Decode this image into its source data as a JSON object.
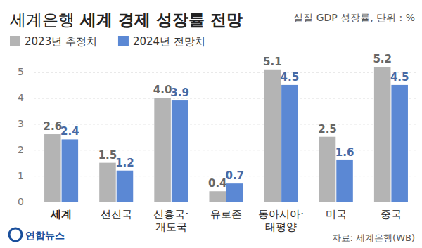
{
  "chart_data": {
    "type": "bar",
    "title": "세계은행 세계 경제 성장률 전망",
    "subtitle": "실질 GDP 성장률, 단위 : %",
    "source": "자료: 세계은행(WB)",
    "logo": "연합뉴스",
    "categories": [
      "세계",
      "선진국",
      "신흥국·개도국",
      "유로존",
      "동아시아·태평양",
      "미국",
      "중국"
    ],
    "series": [
      {
        "name": "2023년 추정치",
        "color": "#b4b4b4",
        "values": [
          2.6,
          1.5,
          4.0,
          0.4,
          5.1,
          2.5,
          5.2
        ],
        "value_labels": [
          "2.6",
          "1.5",
          "4.0",
          "0.4",
          "5.1",
          "2.5",
          "5.2"
        ]
      },
      {
        "name": "2024년 전망치",
        "color": "#5b88d4",
        "values": [
          2.4,
          1.2,
          3.9,
          0.7,
          4.5,
          1.6,
          4.5
        ],
        "value_labels": [
          "2.4",
          "1.2",
          "3.9",
          "0.7",
          "4.5",
          "1.6",
          "4.5"
        ]
      }
    ],
    "ylim": [
      0,
      5.5
    ],
    "yticks": [
      0,
      1,
      2,
      3,
      4,
      5
    ],
    "grid": true,
    "legend": "top-left",
    "data_labels": true
  }
}
